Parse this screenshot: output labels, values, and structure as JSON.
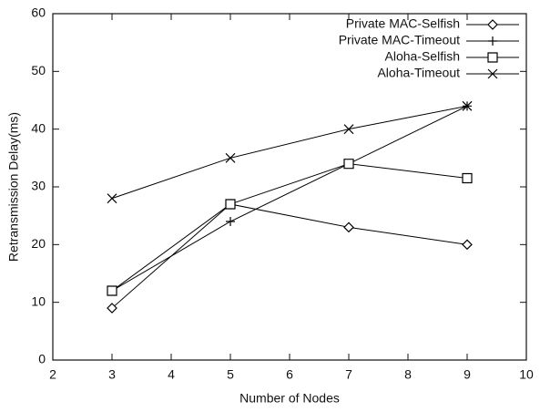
{
  "chart_data": {
    "type": "line",
    "xlabel": "Number of Nodes",
    "ylabel": "Retransmission Delay(ms)",
    "x": [
      3,
      5,
      7,
      9
    ],
    "series": [
      {
        "name": "Private MAC-Selfish",
        "color": "#000000",
        "marker": "diamond",
        "values": [
          9,
          27,
          23,
          20
        ]
      },
      {
        "name": "Private MAC-Timeout",
        "color": "#000000",
        "marker": "plus",
        "values": [
          12,
          24,
          34,
          44
        ]
      },
      {
        "name": "Aloha-Selfish",
        "color": "#000000",
        "marker": "square",
        "values": [
          12,
          27,
          34,
          31.5
        ]
      },
      {
        "name": "Aloha-Timeout",
        "color": "#000000",
        "marker": "cross",
        "values": [
          28,
          35,
          40,
          44
        ]
      }
    ],
    "xlim": [
      2,
      10
    ],
    "xticks": [
      2,
      3,
      4,
      5,
      6,
      7,
      8,
      9,
      10
    ],
    "ylim": [
      0,
      60
    ],
    "yticks": [
      0,
      10,
      20,
      30,
      40,
      50,
      60
    ],
    "legend": "upper right"
  }
}
